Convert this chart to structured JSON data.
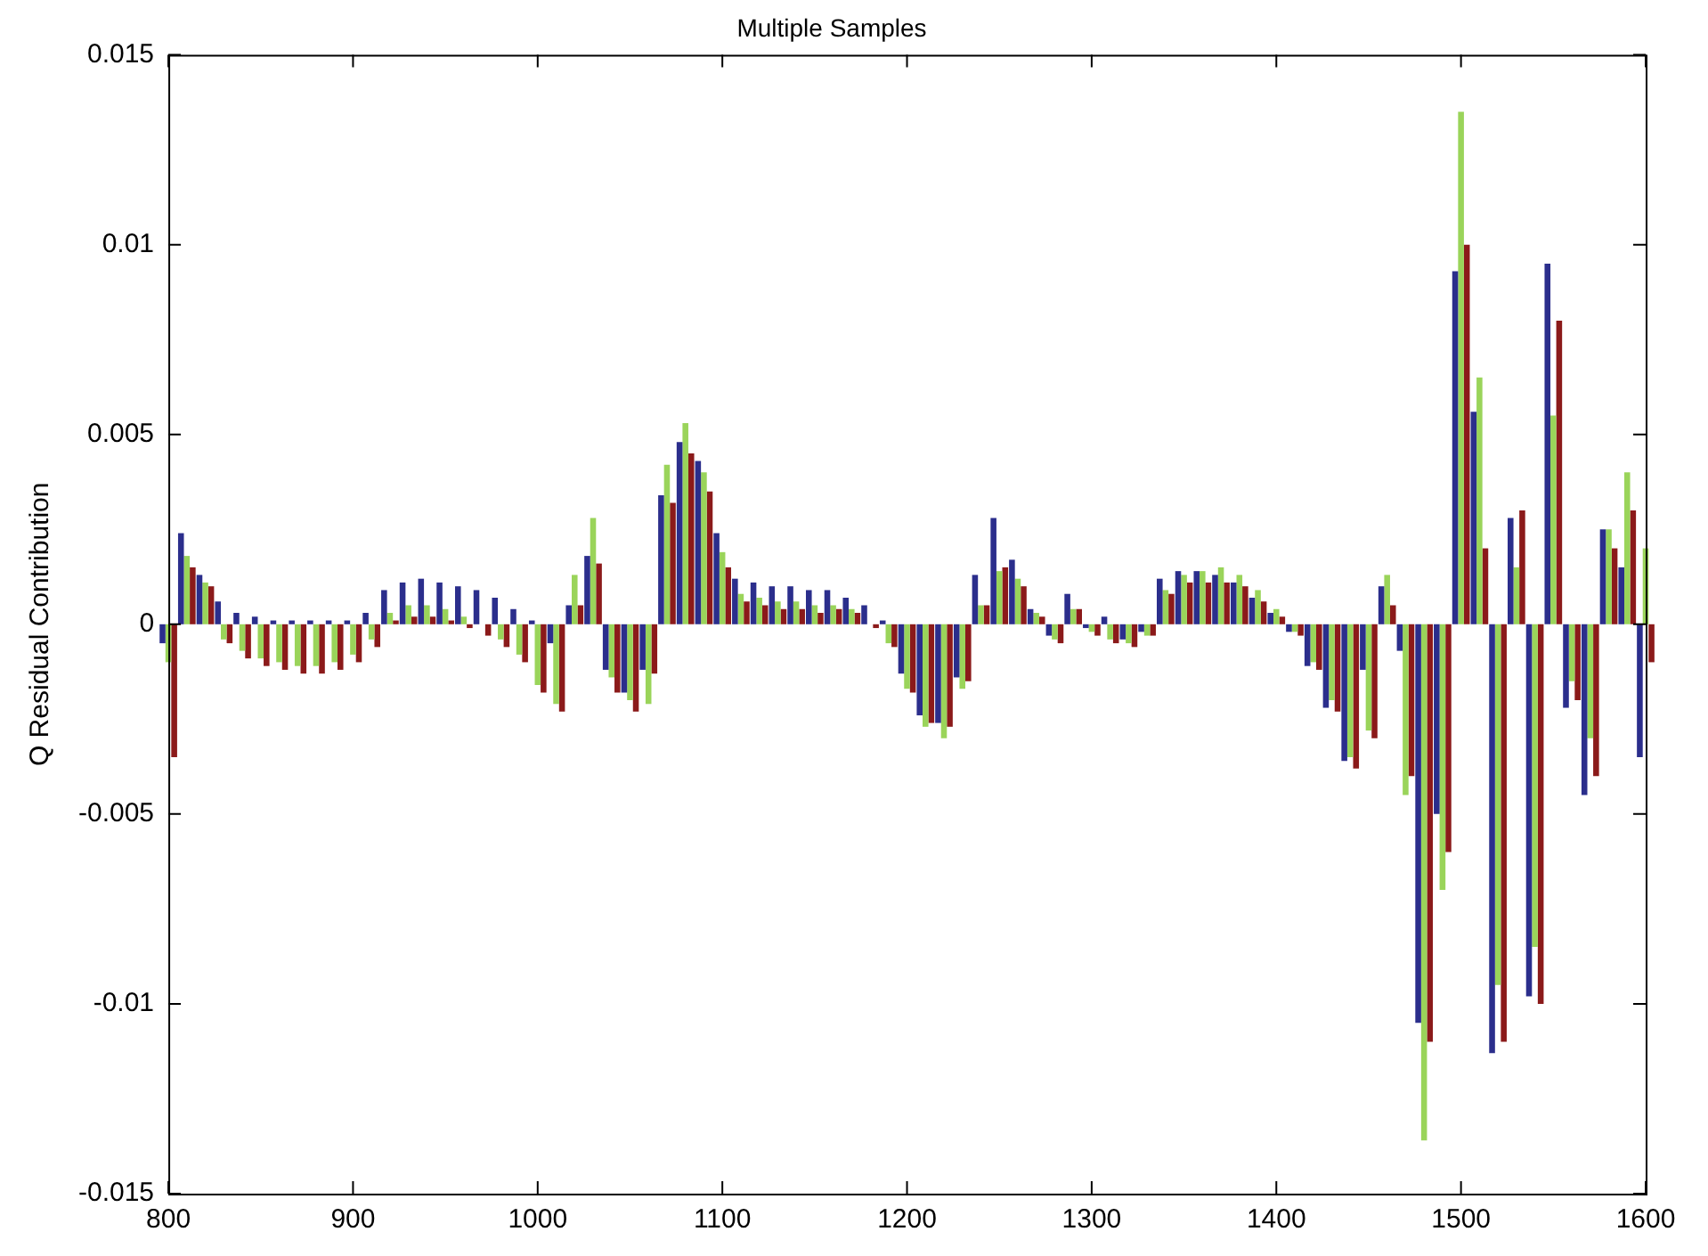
{
  "chart_data": {
    "type": "bar",
    "title": "Multiple Samples",
    "ylabel": "Q Residual Contribution",
    "x": [
      800,
      810,
      820,
      830,
      840,
      850,
      860,
      870,
      880,
      890,
      900,
      910,
      920,
      930,
      940,
      950,
      960,
      970,
      980,
      990,
      1000,
      1010,
      1020,
      1030,
      1040,
      1050,
      1060,
      1070,
      1080,
      1090,
      1100,
      1110,
      1120,
      1130,
      1140,
      1150,
      1160,
      1170,
      1180,
      1190,
      1200,
      1210,
      1220,
      1230,
      1240,
      1250,
      1260,
      1270,
      1280,
      1290,
      1300,
      1310,
      1320,
      1330,
      1340,
      1350,
      1360,
      1370,
      1380,
      1390,
      1400,
      1410,
      1420,
      1430,
      1440,
      1450,
      1460,
      1470,
      1480,
      1490,
      1500,
      1510,
      1520,
      1530,
      1540,
      1550,
      1560,
      1570,
      1580,
      1590,
      1600
    ],
    "series": [
      {
        "color": "#2b2e8c",
        "values": [
          -0.0005,
          0.0024,
          0.0013,
          0.0006,
          0.0003,
          0.0002,
          0.0001,
          0.0001,
          0.0001,
          0.0001,
          0.0001,
          0.0003,
          0.0009,
          0.0011,
          0.0012,
          0.0011,
          0.001,
          0.0009,
          0.0007,
          0.0004,
          0.0001,
          -0.0005,
          0.0005,
          0.0018,
          -0.0012,
          -0.0018,
          -0.0012,
          0.0034,
          0.0048,
          0.0043,
          0.0024,
          0.0012,
          0.0011,
          0.001,
          0.001,
          0.0009,
          0.0009,
          0.0007,
          0.0005,
          0.0001,
          -0.0013,
          -0.0024,
          -0.0026,
          -0.0014,
          0.0013,
          0.0028,
          0.0017,
          0.0004,
          -0.0003,
          0.0008,
          -0.0001,
          0.0002,
          -0.0004,
          -0.0002,
          0.0012,
          0.0014,
          0.0014,
          0.0013,
          0.0011,
          0.0007,
          0.0003,
          -0.0002,
          -0.0011,
          -0.0022,
          -0.0036,
          -0.0012,
          0.001,
          -0.0007,
          -0.0105,
          -0.005,
          0.0093,
          0.0056,
          -0.0113,
          0.0028,
          -0.0098,
          0.0095,
          -0.0022,
          -0.0045,
          0.0025,
          0.0015,
          -0.0035
        ]
      },
      {
        "color": "#9ad45a",
        "values": [
          -0.001,
          0.0018,
          0.0011,
          -0.0004,
          -0.0007,
          -0.0009,
          -0.001,
          -0.0011,
          -0.0011,
          -0.001,
          -0.0008,
          -0.0004,
          0.0003,
          0.0005,
          0.0005,
          0.0004,
          0.0002,
          0,
          -0.0004,
          -0.0008,
          -0.0016,
          -0.0021,
          0.0013,
          0.0028,
          -0.0014,
          -0.002,
          -0.0021,
          0.0042,
          0.0053,
          0.004,
          0.0019,
          0.0008,
          0.0007,
          0.0006,
          0.0006,
          0.0005,
          0.0005,
          0.0004,
          0,
          -0.0005,
          -0.0017,
          -0.0027,
          -0.003,
          -0.0017,
          0.0005,
          0.0014,
          0.0012,
          0.0003,
          -0.0004,
          0.0004,
          -0.0002,
          -0.0004,
          -0.0005,
          -0.0003,
          0.0009,
          0.0013,
          0.0014,
          0.0015,
          0.0013,
          0.0009,
          0.0004,
          -0.0002,
          -0.001,
          -0.002,
          -0.0035,
          -0.0028,
          0.0013,
          -0.0045,
          -0.0136,
          -0.007,
          0.0135,
          0.0065,
          -0.0095,
          0.0015,
          -0.0085,
          0.0055,
          -0.0015,
          -0.003,
          0.0025,
          0.004,
          0.002
        ]
      },
      {
        "color": "#8b1a1a",
        "values": [
          -0.0035,
          0.0015,
          0.001,
          -0.0005,
          -0.0009,
          -0.0011,
          -0.0012,
          -0.0013,
          -0.0013,
          -0.0012,
          -0.001,
          -0.0006,
          0.0001,
          0.0002,
          0.0002,
          0.0001,
          -0.0001,
          -0.0003,
          -0.0006,
          -0.001,
          -0.0018,
          -0.0023,
          0.0005,
          0.0016,
          -0.0018,
          -0.0023,
          -0.0013,
          0.0032,
          0.0045,
          0.0035,
          0.0015,
          0.0006,
          0.0005,
          0.0004,
          0.0004,
          0.0003,
          0.0004,
          0.0003,
          -0.0001,
          -0.0006,
          -0.0018,
          -0.0026,
          -0.0027,
          -0.0015,
          0.0005,
          0.0015,
          0.001,
          0.0002,
          -0.0005,
          0.0004,
          -0.0003,
          -0.0005,
          -0.0006,
          -0.0003,
          0.0008,
          0.0011,
          0.0011,
          0.0011,
          0.001,
          0.0006,
          0.0002,
          -0.0003,
          -0.0012,
          -0.0023,
          -0.0038,
          -0.003,
          0.0005,
          -0.004,
          -0.011,
          -0.006,
          0.01,
          0.002,
          -0.011,
          0.003,
          -0.01,
          0.008,
          -0.002,
          -0.004,
          0.002,
          0.003,
          -0.001
        ]
      }
    ],
    "xlim": [
      800,
      1600
    ],
    "xticks": [
      800,
      900,
      1000,
      1100,
      1200,
      1300,
      1400,
      1500,
      1600
    ],
    "ylim": [
      -0.015,
      0.015
    ],
    "yticks": [
      -0.015,
      -0.01,
      -0.005,
      0,
      0.005,
      0.01,
      0.015
    ],
    "grid": false,
    "legend": false
  }
}
